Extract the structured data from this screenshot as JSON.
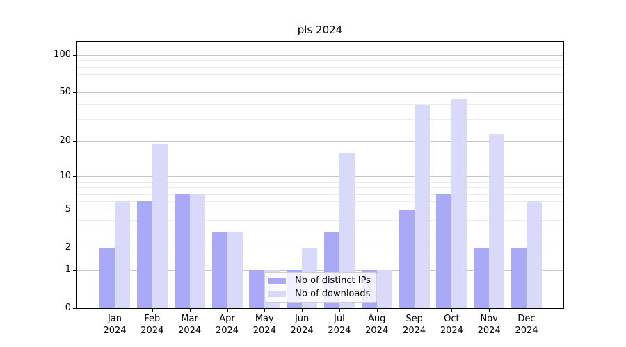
{
  "chart_data": {
    "type": "bar",
    "title": "pls 2024",
    "yscale": "log10(1+x)",
    "categories": [
      {
        "month": "Jan",
        "year": "2024"
      },
      {
        "month": "Feb",
        "year": "2024"
      },
      {
        "month": "Mar",
        "year": "2024"
      },
      {
        "month": "Apr",
        "year": "2024"
      },
      {
        "month": "May",
        "year": "2024"
      },
      {
        "month": "Jun",
        "year": "2024"
      },
      {
        "month": "Jul",
        "year": "2024"
      },
      {
        "month": "Aug",
        "year": "2024"
      },
      {
        "month": "Sep",
        "year": "2024"
      },
      {
        "month": "Oct",
        "year": "2024"
      },
      {
        "month": "Nov",
        "year": "2024"
      },
      {
        "month": "Dec",
        "year": "2024"
      }
    ],
    "series": [
      {
        "name": "Nb of distinct IPs",
        "color": "#a9a9f8",
        "values": [
          2,
          6,
          7,
          3,
          1,
          1,
          3,
          1,
          5,
          7,
          2,
          2
        ]
      },
      {
        "name": "Nb of downloads",
        "color": "#d9d9fa",
        "values": [
          6,
          19,
          7,
          3,
          1,
          2,
          16,
          1,
          39,
          44,
          23,
          6
        ]
      }
    ],
    "y_axis": {
      "ticks": [
        0,
        1,
        2,
        5,
        10,
        20,
        50,
        100
      ],
      "minor_gridline_values": [
        3,
        4,
        6,
        7,
        8,
        9,
        30,
        40,
        60,
        70,
        80,
        90
      ],
      "top_value": 127
    },
    "grid": {
      "major_color": "#c6c6c6",
      "minor_color": "#ebebeb"
    },
    "legend": {
      "position": "lower center",
      "entries": [
        "Nb of distinct IPs",
        "Nb of downloads"
      ]
    }
  }
}
